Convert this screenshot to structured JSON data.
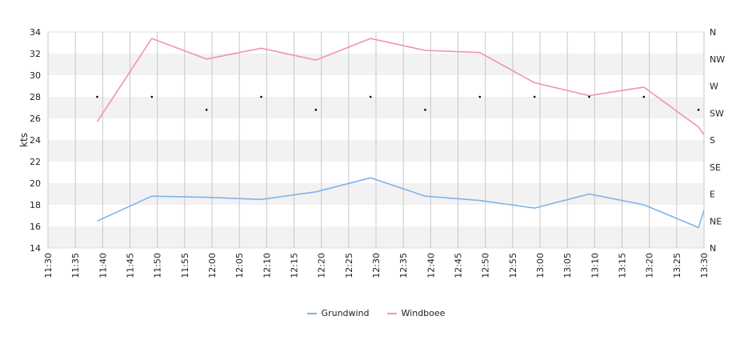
{
  "chart_data": {
    "type": "line",
    "ylabel": "kts",
    "ylim": [
      14,
      34
    ],
    "yticks": [
      "14",
      "16",
      "18",
      "20",
      "22",
      "24",
      "26",
      "28",
      "30",
      "32",
      "34"
    ],
    "x_ticks": [
      "11:30",
      "11:35",
      "11:40",
      "11:45",
      "11:50",
      "11:55",
      "12:00",
      "12:05",
      "12:10",
      "12:15",
      "12:20",
      "12:25",
      "12:30",
      "12:35",
      "12:40",
      "12:45",
      "12:50",
      "12:55",
      "13:00",
      "13:05",
      "13:10",
      "13:15",
      "13:20",
      "13:25",
      "13:30"
    ],
    "y2_ticks": [
      "N",
      "NE",
      "E",
      "SE",
      "S",
      "SW",
      "W",
      "NW",
      "N"
    ],
    "series": [
      {
        "name": "Grundwind",
        "color": "#7cb5ec",
        "x": [
          "11:39",
          "11:49",
          "11:59",
          "12:09",
          "12:19",
          "12:29",
          "12:39",
          "12:49",
          "12:59",
          "13:09",
          "13:19",
          "13:29",
          "13:30"
        ],
        "values": [
          16.5,
          18.8,
          18.7,
          18.5,
          19.2,
          20.5,
          18.8,
          18.4,
          17.7,
          19.0,
          18.0,
          15.9,
          17.5
        ]
      },
      {
        "name": "Windboee",
        "color": "#f28fc0",
        "x": [
          "11:39",
          "11:49",
          "11:59",
          "12:09",
          "12:19",
          "12:29",
          "12:39",
          "12:49",
          "12:59",
          "13:09",
          "13:19",
          "13:29",
          "13:30"
        ],
        "values": [
          25.7,
          33.4,
          31.5,
          32.5,
          31.4,
          33.4,
          32.3,
          32.1,
          29.3,
          28.1,
          28.9,
          25.2,
          24.5
        ]
      }
    ],
    "direction_markers": {
      "x": [
        "11:39",
        "11:49",
        "11:59",
        "12:09",
        "12:19",
        "12:29",
        "12:39",
        "12:49",
        "12:59",
        "13:09",
        "13:19",
        "13:29"
      ],
      "values": [
        28.0,
        28.0,
        26.8,
        28.0,
        26.8,
        28.0,
        26.8,
        28.0,
        28.0,
        28.0,
        28.0,
        26.8
      ]
    },
    "grid": true
  }
}
